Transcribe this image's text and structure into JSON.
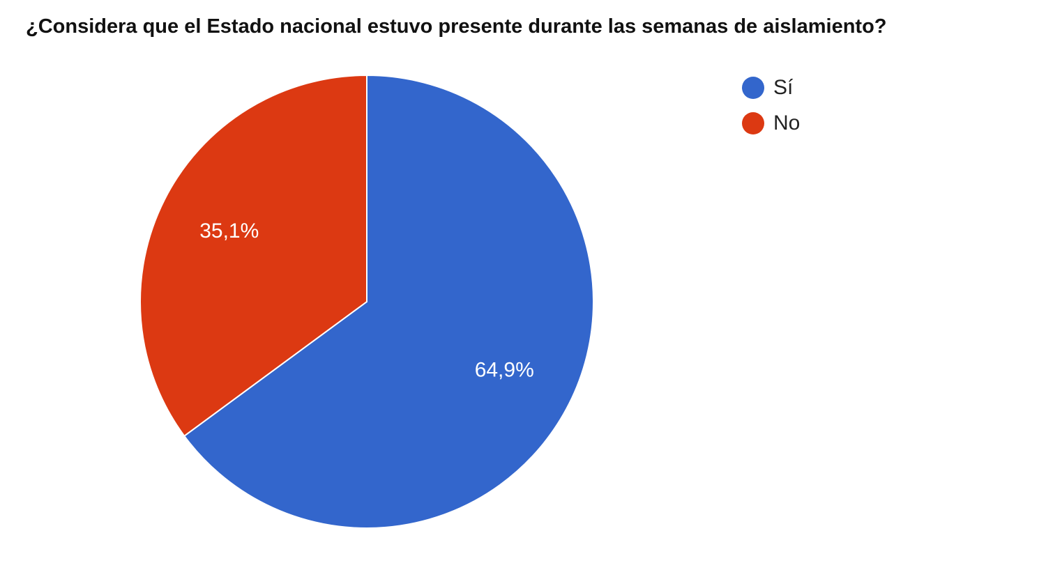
{
  "chart_data": {
    "type": "pie",
    "title": "¿Considera que el Estado nacional estuvo presente durante las semanas de aislamiento?",
    "categories": [
      "Sí",
      "No"
    ],
    "values": [
      64.9,
      35.1
    ],
    "labels": [
      "64,9%",
      "35,1%"
    ],
    "colors": [
      "#3366cc",
      "#dc3912"
    ],
    "start": "top, clockwise",
    "legend_position": "right"
  }
}
